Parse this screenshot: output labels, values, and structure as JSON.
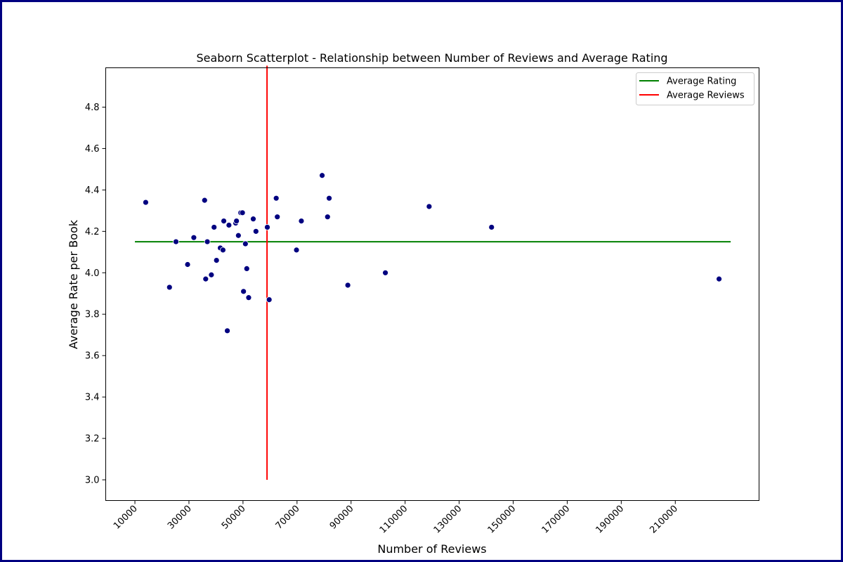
{
  "chart_data": {
    "type": "scatter",
    "title": "Seaborn Scatterplot - Relationship between Number of Reviews and Average Rating",
    "xlabel": "Number of Reviews",
    "ylabel": "Average Rate per Book",
    "xlim": [
      -800,
      241000
    ],
    "ylim": [
      2.9,
      4.99
    ],
    "xticks": [
      10000,
      30000,
      50000,
      70000,
      90000,
      110000,
      130000,
      150000,
      170000,
      190000,
      210000
    ],
    "xtick_labels": [
      "10000",
      "30000",
      "50000",
      "70000",
      "90000",
      "110000",
      "130000",
      "150000",
      "170000",
      "190000",
      "210000"
    ],
    "yticks": [
      3.0,
      3.2,
      3.4,
      3.6,
      3.8,
      4.0,
      4.2,
      4.4,
      4.6,
      4.8
    ],
    "ytick_labels": [
      "3.0",
      "3.2",
      "3.4",
      "3.6",
      "3.8",
      "4.0",
      "4.2",
      "4.4",
      "4.6",
      "4.8"
    ],
    "grid": false,
    "legend_position": "top-right",
    "point_color": "#000080",
    "points": [
      {
        "x": 14000,
        "y": 4.34
      },
      {
        "x": 22800,
        "y": 3.93
      },
      {
        "x": 25200,
        "y": 4.15
      },
      {
        "x": 29500,
        "y": 4.04
      },
      {
        "x": 31800,
        "y": 4.17
      },
      {
        "x": 35800,
        "y": 4.35
      },
      {
        "x": 36200,
        "y": 3.97
      },
      {
        "x": 36800,
        "y": 4.15
      },
      {
        "x": 38300,
        "y": 3.99
      },
      {
        "x": 39300,
        "y": 4.22
      },
      {
        "x": 40200,
        "y": 4.06
      },
      {
        "x": 41600,
        "y": 4.12
      },
      {
        "x": 42600,
        "y": 4.11
      },
      {
        "x": 42900,
        "y": 4.25
      },
      {
        "x": 44200,
        "y": 3.72
      },
      {
        "x": 44800,
        "y": 4.23
      },
      {
        "x": 47300,
        "y": 4.24
      },
      {
        "x": 47600,
        "y": 4.25
      },
      {
        "x": 48300,
        "y": 4.18
      },
      {
        "x": 49200,
        "y": 4.29
      },
      {
        "x": 49800,
        "y": 4.29
      },
      {
        "x": 50200,
        "y": 3.91
      },
      {
        "x": 50900,
        "y": 4.14
      },
      {
        "x": 51400,
        "y": 4.02
      },
      {
        "x": 52100,
        "y": 3.88
      },
      {
        "x": 53800,
        "y": 4.26
      },
      {
        "x": 54800,
        "y": 4.2
      },
      {
        "x": 59000,
        "y": 4.22
      },
      {
        "x": 59700,
        "y": 3.87
      },
      {
        "x": 62300,
        "y": 4.36
      },
      {
        "x": 62700,
        "y": 4.27
      },
      {
        "x": 69800,
        "y": 4.11
      },
      {
        "x": 71600,
        "y": 4.25
      },
      {
        "x": 79300,
        "y": 4.47
      },
      {
        "x": 81300,
        "y": 4.27
      },
      {
        "x": 81900,
        "y": 4.36
      },
      {
        "x": 88800,
        "y": 3.94
      },
      {
        "x": 102700,
        "y": 4.0
      },
      {
        "x": 118900,
        "y": 4.32
      },
      {
        "x": 142000,
        "y": 4.22
      },
      {
        "x": 226200,
        "y": 3.97
      }
    ],
    "reference_lines": [
      {
        "name": "Average Rating",
        "orientation": "horizontal",
        "y": 4.15,
        "x_from": 10000,
        "x_to": 230500,
        "color": "#008000"
      },
      {
        "name": "Average Reviews",
        "orientation": "vertical",
        "x": 58900,
        "y_from": 3.0,
        "y_to": 5.0,
        "color": "#ff0000"
      }
    ]
  }
}
